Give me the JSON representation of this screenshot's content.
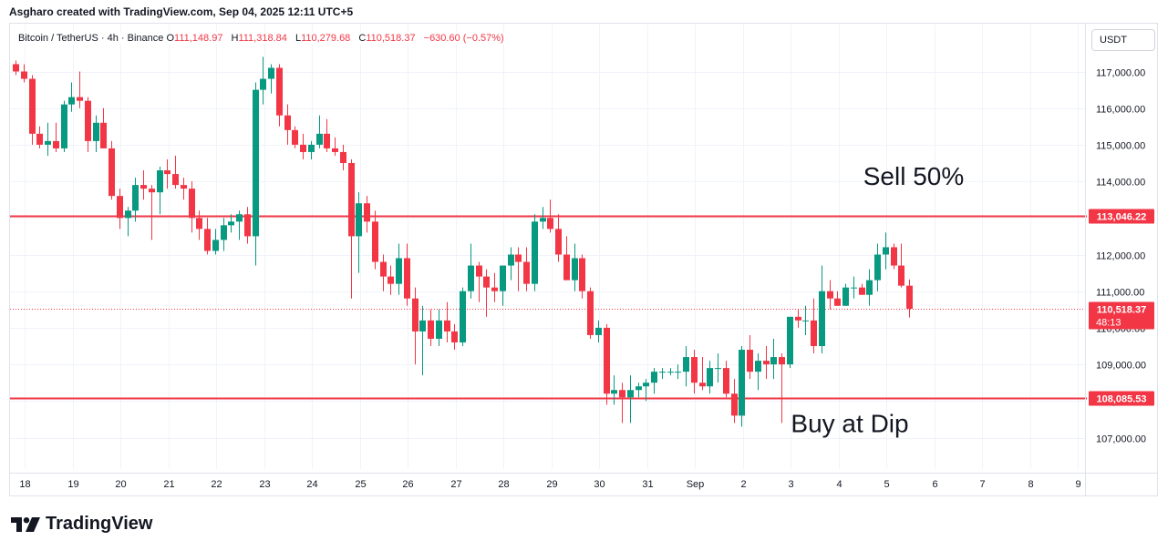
{
  "header": {
    "caption": "Asgharo created with TradingView.com, Sep 04, 2025 12:11 UTC+5"
  },
  "legend": {
    "symbol": "Bitcoin / TetherUS · 4h · Binance",
    "open_label": "O",
    "open": "111,148.97",
    "high_label": "H",
    "high": "111,318.84",
    "low_label": "L",
    "low": "110,279.68",
    "close_label": "C",
    "close": "110,518.37",
    "change": "−630.60 (−0.57%)"
  },
  "currency": "USDT",
  "logo": {
    "text": "TradingView",
    "icon": "tradingview-logo-icon"
  },
  "colors": {
    "up": "#089981",
    "down": "#f23645",
    "level": "#f23645",
    "grid": "#f0f3fa"
  },
  "chart_data": {
    "type": "candlestick",
    "ylim": [
      106500,
      118200
    ],
    "y_ticks": [
      "107,000.00",
      "108,000.00",
      "109,000.00",
      "110,000.00",
      "111,000.00",
      "112,000.00",
      "113,000.00",
      "114,000.00",
      "115,000.00",
      "116,000.00",
      "117,000.00"
    ],
    "y_tick_values": [
      107000,
      108000,
      109000,
      110000,
      111000,
      112000,
      113000,
      114000,
      115000,
      116000,
      117000
    ],
    "x_ticks": [
      "18",
      "19",
      "20",
      "21",
      "22",
      "23",
      "24",
      "25",
      "26",
      "27",
      "28",
      "29",
      "30",
      "31",
      "Sep",
      "2",
      "3",
      "4",
      "5",
      "6",
      "7",
      "8",
      "9"
    ],
    "x_tick_index": [
      0,
      6,
      12,
      18,
      24,
      30,
      36,
      42,
      48,
      54,
      60,
      66,
      72,
      78,
      84,
      90,
      96,
      102,
      108,
      114,
      120,
      126,
      132
    ],
    "levels": [
      {
        "value": 113046.22,
        "label": "113,046.22"
      },
      {
        "value": 108085.53,
        "label": "108,085.53"
      }
    ],
    "last_price": {
      "value": 110518.37,
      "label": "110,518.37",
      "countdown": "48:13"
    },
    "annotations": [
      {
        "text": "Sell 50%",
        "index": 112,
        "price": 113900
      },
      {
        "text": "Buy at Dip",
        "index": 104,
        "price": 107150
      }
    ],
    "candles": [
      [
        117200,
        117300,
        116900,
        117000
      ],
      [
        117000,
        117200,
        116700,
        116800
      ],
      [
        116800,
        116900,
        115000,
        115300
      ],
      [
        115300,
        115500,
        114900,
        115000
      ],
      [
        115000,
        115600,
        114700,
        115100
      ],
      [
        115100,
        115600,
        114800,
        114900
      ],
      [
        114900,
        116200,
        114800,
        116100
      ],
      [
        116100,
        116700,
        115900,
        116300
      ],
      [
        116300,
        117000,
        116000,
        116200
      ],
      [
        116200,
        116300,
        114800,
        115100
      ],
      [
        115100,
        115800,
        114800,
        115600
      ],
      [
        115600,
        116000,
        114900,
        114900
      ],
      [
        114900,
        115100,
        113500,
        113600
      ],
      [
        113600,
        113800,
        112700,
        113000
      ],
      [
        113000,
        113300,
        112500,
        113200
      ],
      [
        113200,
        114100,
        112900,
        113900
      ],
      [
        113900,
        114300,
        113500,
        113800
      ],
      [
        113800,
        113900,
        112400,
        113700
      ],
      [
        113700,
        114400,
        113100,
        114300
      ],
      [
        114300,
        114600,
        113800,
        114200
      ],
      [
        114200,
        114700,
        113800,
        113900
      ],
      [
        113900,
        114100,
        113500,
        113800
      ],
      [
        113800,
        114000,
        112600,
        113000
      ],
      [
        113000,
        113200,
        112400,
        112700
      ],
      [
        112700,
        113000,
        112000,
        112100
      ],
      [
        112100,
        112700,
        112000,
        112400
      ],
      [
        112400,
        113000,
        112100,
        112800
      ],
      [
        112800,
        113100,
        112600,
        112900
      ],
      [
        112900,
        113200,
        112400,
        113100
      ],
      [
        113100,
        113300,
        112300,
        112500
      ],
      [
        112500,
        116700,
        111700,
        116500
      ],
      [
        116500,
        117400,
        116100,
        116800
      ],
      [
        116800,
        117200,
        116400,
        117100
      ],
      [
        117100,
        117200,
        115500,
        115800
      ],
      [
        115800,
        116100,
        115000,
        115400
      ],
      [
        115400,
        115500,
        114900,
        115000
      ],
      [
        115000,
        115300,
        114600,
        114800
      ],
      [
        114800,
        115100,
        114600,
        115000
      ],
      [
        115000,
        115800,
        114900,
        115300
      ],
      [
        115300,
        115700,
        114800,
        114900
      ],
      [
        114900,
        115200,
        114700,
        114800
      ],
      [
        114800,
        115000,
        114300,
        114500
      ],
      [
        114500,
        114600,
        110800,
        112500
      ],
      [
        112500,
        113700,
        111500,
        113400
      ],
      [
        113400,
        113600,
        112600,
        112900
      ],
      [
        112900,
        113200,
        111600,
        111800
      ],
      [
        111800,
        112000,
        111000,
        111400
      ],
      [
        111400,
        111700,
        110900,
        111200
      ],
      [
        111200,
        112300,
        110900,
        111900
      ],
      [
        111900,
        112300,
        110600,
        110800
      ],
      [
        110800,
        111100,
        109000,
        109900
      ],
      [
        109900,
        110600,
        108700,
        110200
      ],
      [
        110200,
        110500,
        109500,
        109700
      ],
      [
        109700,
        110500,
        109500,
        110200
      ],
      [
        110200,
        110700,
        109600,
        109900
      ],
      [
        109900,
        110100,
        109400,
        109600
      ],
      [
        109600,
        111100,
        109500,
        111000
      ],
      [
        111000,
        112300,
        110800,
        111700
      ],
      [
        111700,
        111800,
        110700,
        111400
      ],
      [
        111400,
        111600,
        110300,
        111100
      ],
      [
        111100,
        111500,
        110700,
        111000
      ],
      [
        111000,
        111700,
        110600,
        111700
      ],
      [
        111700,
        112200,
        111300,
        112000
      ],
      [
        112000,
        112200,
        111000,
        111800
      ],
      [
        111800,
        112200,
        111000,
        111200
      ],
      [
        111200,
        113100,
        111000,
        112900
      ],
      [
        112900,
        113300,
        112700,
        113000
      ],
      [
        113000,
        113500,
        112600,
        112700
      ],
      [
        112700,
        113100,
        111800,
        112000
      ],
      [
        112000,
        112500,
        111300,
        111300
      ],
      [
        111300,
        112300,
        111000,
        111900
      ],
      [
        111900,
        112000,
        110800,
        111000
      ],
      [
        111000,
        111100,
        109700,
        109800
      ],
      [
        109800,
        110200,
        109600,
        110000
      ],
      [
        110000,
        110100,
        107900,
        108200
      ],
      [
        108200,
        108700,
        107900,
        108300
      ],
      [
        108300,
        108500,
        107400,
        108100
      ],
      [
        108100,
        108700,
        107400,
        108300
      ],
      [
        108300,
        108500,
        108100,
        108400
      ],
      [
        108400,
        108600,
        108000,
        108500
      ],
      [
        108500,
        108900,
        108200,
        108800
      ],
      [
        108800,
        108900,
        108600,
        108800
      ],
      [
        108800,
        108900,
        108700,
        108800
      ],
      [
        108800,
        109000,
        108600,
        108800
      ],
      [
        108800,
        109500,
        108400,
        109200
      ],
      [
        109200,
        109400,
        108200,
        108500
      ],
      [
        108500,
        109200,
        108300,
        108400
      ],
      [
        108400,
        109100,
        108200,
        108900
      ],
      [
        108900,
        109300,
        108500,
        108900
      ],
      [
        108900,
        109100,
        108100,
        108200
      ],
      [
        108200,
        108600,
        107400,
        107600
      ],
      [
        107600,
        109500,
        107300,
        109400
      ],
      [
        109400,
        109800,
        108600,
        108800
      ],
      [
        108800,
        109300,
        108300,
        109100
      ],
      [
        109100,
        109500,
        108600,
        109000
      ],
      [
        109000,
        109700,
        108600,
        109200
      ],
      [
        109200,
        109300,
        107400,
        109000
      ],
      [
        109000,
        110300,
        108900,
        110300
      ],
      [
        110300,
        110500,
        110000,
        110200
      ],
      [
        110200,
        110600,
        109800,
        110200
      ],
      [
        110200,
        110800,
        109300,
        109500
      ],
      [
        109500,
        111700,
        109300,
        111000
      ],
      [
        111000,
        111300,
        110500,
        110800
      ],
      [
        110800,
        111000,
        110600,
        110600
      ],
      [
        110600,
        111200,
        110600,
        111100
      ],
      [
        111100,
        111400,
        110800,
        111100
      ],
      [
        111100,
        111200,
        110900,
        110900
      ],
      [
        110900,
        111600,
        110600,
        111300
      ],
      [
        111300,
        112300,
        111000,
        112000
      ],
      [
        112000,
        112600,
        111600,
        112200
      ],
      [
        112200,
        112300,
        111600,
        111700
      ],
      [
        111700,
        112300,
        111100,
        111150
      ],
      [
        111150,
        111320,
        110280,
        110520
      ]
    ]
  }
}
